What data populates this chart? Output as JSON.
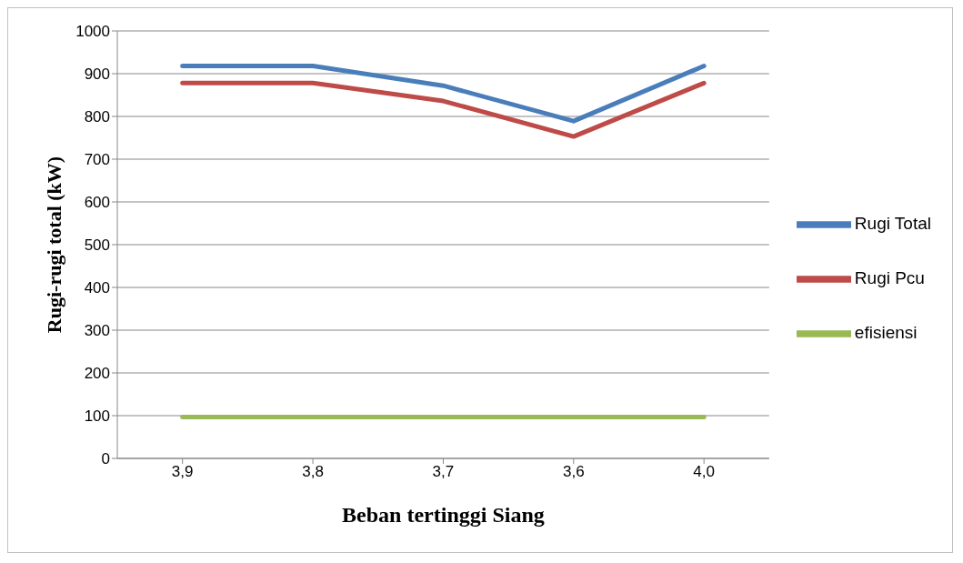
{
  "chart_data": {
    "type": "line",
    "xlabel": "Beban tertinggi Siang",
    "ylabel": "Rugi-rugi total (kW)",
    "categories": [
      "3,9",
      "3,8",
      "3,7",
      "3,6",
      "4,0"
    ],
    "series": [
      {
        "name": "Rugi Total",
        "color": "#4a7ebb",
        "values": [
          918,
          918,
          872,
          789,
          918
        ]
      },
      {
        "name": "Rugi Pcu",
        "color": "#be4b48",
        "values": [
          878,
          878,
          836,
          753,
          878
        ]
      },
      {
        "name": "efisiensi",
        "color": "#98b954",
        "values": [
          97,
          97,
          97,
          97,
          97
        ]
      }
    ],
    "ylim": [
      0,
      1000
    ],
    "yticks": [
      0,
      100,
      200,
      300,
      400,
      500,
      600,
      700,
      800,
      900,
      1000
    ],
    "grid": "y",
    "legend": "right",
    "marker": "none",
    "line_style": "solid"
  }
}
